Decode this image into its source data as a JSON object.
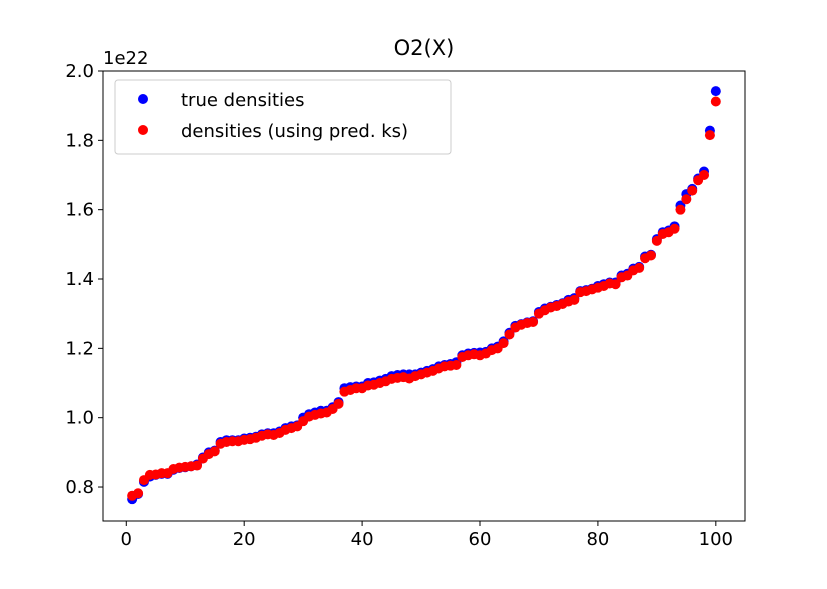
{
  "chart_data": {
    "type": "scatter",
    "title": "O2(X)",
    "y_offset_label": "1e22",
    "x": [
      1,
      2,
      3,
      4,
      5,
      6,
      7,
      8,
      9,
      10,
      11,
      12,
      13,
      14,
      15,
      16,
      17,
      18,
      19,
      20,
      21,
      22,
      23,
      24,
      25,
      26,
      27,
      28,
      29,
      30,
      31,
      32,
      33,
      34,
      35,
      36,
      37,
      38,
      39,
      40,
      41,
      42,
      43,
      44,
      45,
      46,
      47,
      48,
      49,
      50,
      51,
      52,
      53,
      54,
      55,
      56,
      57,
      58,
      59,
      60,
      61,
      62,
      63,
      64,
      65,
      66,
      67,
      68,
      69,
      70,
      71,
      72,
      73,
      74,
      75,
      76,
      77,
      78,
      79,
      80,
      81,
      82,
      83,
      84,
      85,
      86,
      87,
      88,
      89,
      90,
      91,
      92,
      93,
      94,
      95,
      96,
      97,
      98,
      99,
      100
    ],
    "series": [
      {
        "name": "true densities",
        "color": "#0000ff",
        "values": [
          0.765,
          0.78,
          0.815,
          0.83,
          0.835,
          0.838,
          0.838,
          0.85,
          0.855,
          0.857,
          0.86,
          0.865,
          0.885,
          0.9,
          0.905,
          0.93,
          0.935,
          0.935,
          0.935,
          0.94,
          0.942,
          0.945,
          0.952,
          0.955,
          0.955,
          0.96,
          0.97,
          0.975,
          0.978,
          1.0,
          1.01,
          1.015,
          1.02,
          1.02,
          1.03,
          1.045,
          1.085,
          1.088,
          1.09,
          1.09,
          1.1,
          1.102,
          1.107,
          1.112,
          1.12,
          1.123,
          1.125,
          1.125,
          1.125,
          1.13,
          1.135,
          1.14,
          1.148,
          1.152,
          1.155,
          1.16,
          1.18,
          1.185,
          1.187,
          1.188,
          1.19,
          1.2,
          1.205,
          1.22,
          1.245,
          1.265,
          1.27,
          1.275,
          1.278,
          1.305,
          1.315,
          1.32,
          1.325,
          1.33,
          1.34,
          1.345,
          1.365,
          1.368,
          1.372,
          1.38,
          1.385,
          1.39,
          1.39,
          1.41,
          1.415,
          1.43,
          1.435,
          1.465,
          1.47,
          1.515,
          1.535,
          1.54,
          1.552,
          1.612,
          1.645,
          1.66,
          1.69,
          1.71,
          1.828,
          1.942
        ]
      },
      {
        "name": "densities (using pred. ks)",
        "color": "#ff0000",
        "values": [
          0.775,
          0.782,
          0.82,
          0.835,
          0.836,
          0.84,
          0.84,
          0.852,
          0.856,
          0.858,
          0.86,
          0.862,
          0.882,
          0.895,
          0.903,
          0.925,
          0.93,
          0.932,
          0.932,
          0.936,
          0.938,
          0.942,
          0.948,
          0.952,
          0.95,
          0.956,
          0.965,
          0.97,
          0.975,
          0.99,
          1.003,
          1.008,
          1.012,
          1.015,
          1.025,
          1.04,
          1.075,
          1.08,
          1.085,
          1.085,
          1.093,
          1.095,
          1.1,
          1.105,
          1.112,
          1.115,
          1.117,
          1.113,
          1.12,
          1.125,
          1.13,
          1.135,
          1.142,
          1.148,
          1.15,
          1.152,
          1.175,
          1.18,
          1.183,
          1.18,
          1.185,
          1.195,
          1.2,
          1.215,
          1.24,
          1.26,
          1.268,
          1.273,
          1.276,
          1.3,
          1.31,
          1.318,
          1.322,
          1.328,
          1.335,
          1.34,
          1.362,
          1.365,
          1.37,
          1.375,
          1.38,
          1.387,
          1.385,
          1.405,
          1.41,
          1.425,
          1.432,
          1.46,
          1.468,
          1.51,
          1.53,
          1.535,
          1.545,
          1.6,
          1.63,
          1.655,
          1.685,
          1.7,
          1.815,
          1.912
        ]
      }
    ],
    "xlim": [
      -3.95,
      104.95
    ],
    "ylim": [
      0.702,
      2.0
    ],
    "xticks": [
      0,
      20,
      40,
      60,
      80,
      100
    ],
    "yticks": [
      0.8,
      {
        "value": 1,
        "label": "1.0"
      },
      1.2,
      1.4,
      1.6,
      1.8,
      {
        "value": 2,
        "label": "2.0"
      }
    ],
    "legend": "upper left"
  }
}
